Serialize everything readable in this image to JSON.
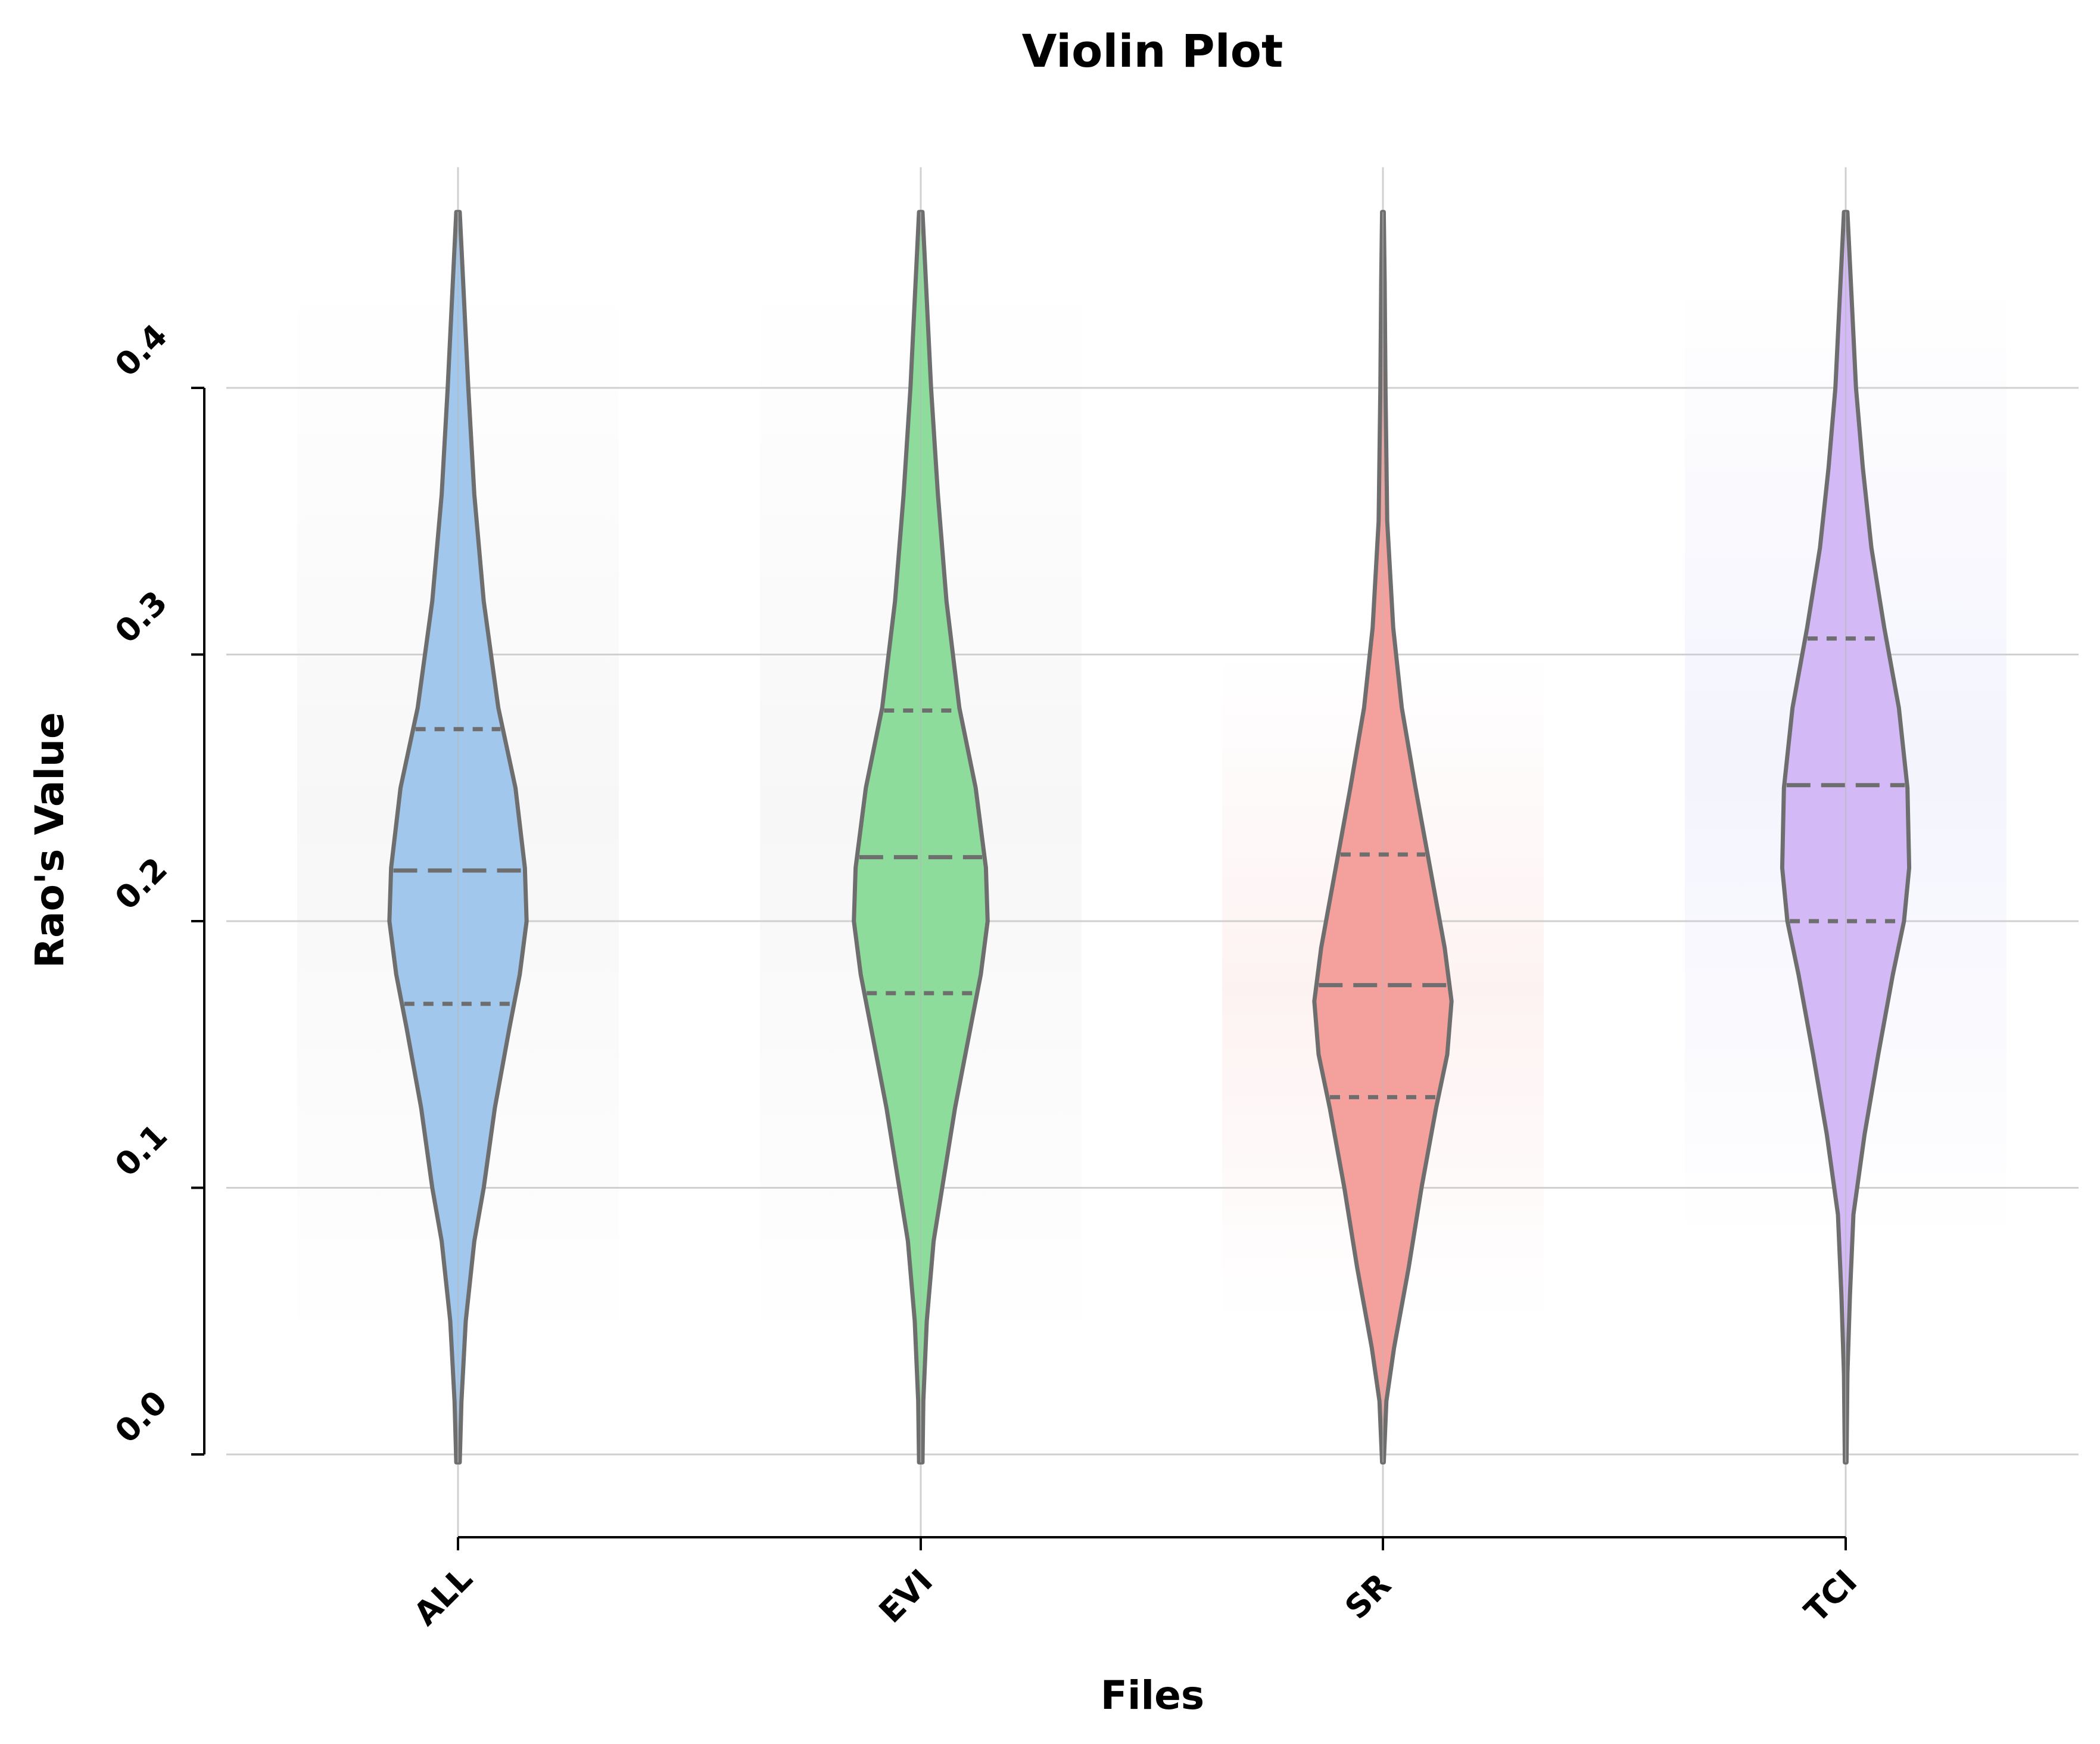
{
  "chart_data": {
    "type": "violin",
    "title": "Violin Plot",
    "xlabel": "Files",
    "ylabel": "Rao's Value",
    "ylim": [
      -0.02,
      0.485
    ],
    "yticks": [
      "0.0",
      "0.1",
      "0.2",
      "0.3",
      "0.4"
    ],
    "ytick_values": [
      0.0,
      0.1,
      0.2,
      0.3,
      0.4
    ],
    "grid": true,
    "categories": [
      "ALL",
      "EVI",
      "SR",
      "TCI"
    ],
    "series": [
      {
        "category": "ALL",
        "color": "#a1c8ec",
        "min": -0.003,
        "max": 0.466,
        "quartiles": [
          0.169,
          0.219,
          0.272
        ],
        "halfwidth_profile": [
          [
            -0.003,
            0.02
          ],
          [
            0.02,
            0.04
          ],
          [
            0.05,
            0.09
          ],
          [
            0.08,
            0.19
          ],
          [
            0.1,
            0.3
          ],
          [
            0.13,
            0.43
          ],
          [
            0.16,
            0.6
          ],
          [
            0.18,
            0.72
          ],
          [
            0.2,
            0.8
          ],
          [
            0.22,
            0.78
          ],
          [
            0.25,
            0.67
          ],
          [
            0.28,
            0.47
          ],
          [
            0.32,
            0.3
          ],
          [
            0.36,
            0.19
          ],
          [
            0.4,
            0.12
          ],
          [
            0.44,
            0.06
          ],
          [
            0.466,
            0.02
          ]
        ]
      },
      {
        "category": "EVI",
        "color": "#8edc9c",
        "min": -0.003,
        "max": 0.466,
        "quartiles": [
          0.173,
          0.224,
          0.279
        ],
        "halfwidth_profile": [
          [
            -0.003,
            0.02
          ],
          [
            0.02,
            0.03
          ],
          [
            0.05,
            0.07
          ],
          [
            0.08,
            0.15
          ],
          [
            0.1,
            0.25
          ],
          [
            0.13,
            0.4
          ],
          [
            0.16,
            0.58
          ],
          [
            0.18,
            0.7
          ],
          [
            0.2,
            0.78
          ],
          [
            0.22,
            0.76
          ],
          [
            0.25,
            0.64
          ],
          [
            0.28,
            0.45
          ],
          [
            0.32,
            0.3
          ],
          [
            0.36,
            0.2
          ],
          [
            0.4,
            0.12
          ],
          [
            0.44,
            0.06
          ],
          [
            0.466,
            0.02
          ]
        ]
      },
      {
        "category": "SR",
        "color": "#f4a19e",
        "min": -0.003,
        "max": 0.466,
        "quartiles": [
          0.134,
          0.176,
          0.225
        ],
        "halfwidth_profile": [
          [
            -0.003,
            0.01
          ],
          [
            0.02,
            0.04
          ],
          [
            0.04,
            0.13
          ],
          [
            0.07,
            0.3
          ],
          [
            0.1,
            0.45
          ],
          [
            0.13,
            0.62
          ],
          [
            0.15,
            0.75
          ],
          [
            0.17,
            0.8
          ],
          [
            0.19,
            0.72
          ],
          [
            0.22,
            0.55
          ],
          [
            0.25,
            0.38
          ],
          [
            0.28,
            0.22
          ],
          [
            0.31,
            0.12
          ],
          [
            0.35,
            0.05
          ],
          [
            0.4,
            0.03
          ],
          [
            0.44,
            0.02
          ],
          [
            0.466,
            0.01
          ]
        ]
      },
      {
        "category": "TCI",
        "color": "#d3baf6",
        "min": -0.003,
        "max": 0.466,
        "quartiles": [
          0.2,
          0.251,
          0.306
        ],
        "halfwidth_profile": [
          [
            -0.003,
            0.01
          ],
          [
            0.03,
            0.02
          ],
          [
            0.06,
            0.05
          ],
          [
            0.09,
            0.09
          ],
          [
            0.12,
            0.22
          ],
          [
            0.15,
            0.38
          ],
          [
            0.18,
            0.55
          ],
          [
            0.2,
            0.68
          ],
          [
            0.22,
            0.74
          ],
          [
            0.25,
            0.72
          ],
          [
            0.28,
            0.62
          ],
          [
            0.31,
            0.45
          ],
          [
            0.34,
            0.3
          ],
          [
            0.37,
            0.2
          ],
          [
            0.4,
            0.12
          ],
          [
            0.44,
            0.06
          ],
          [
            0.466,
            0.02
          ]
        ]
      }
    ]
  }
}
